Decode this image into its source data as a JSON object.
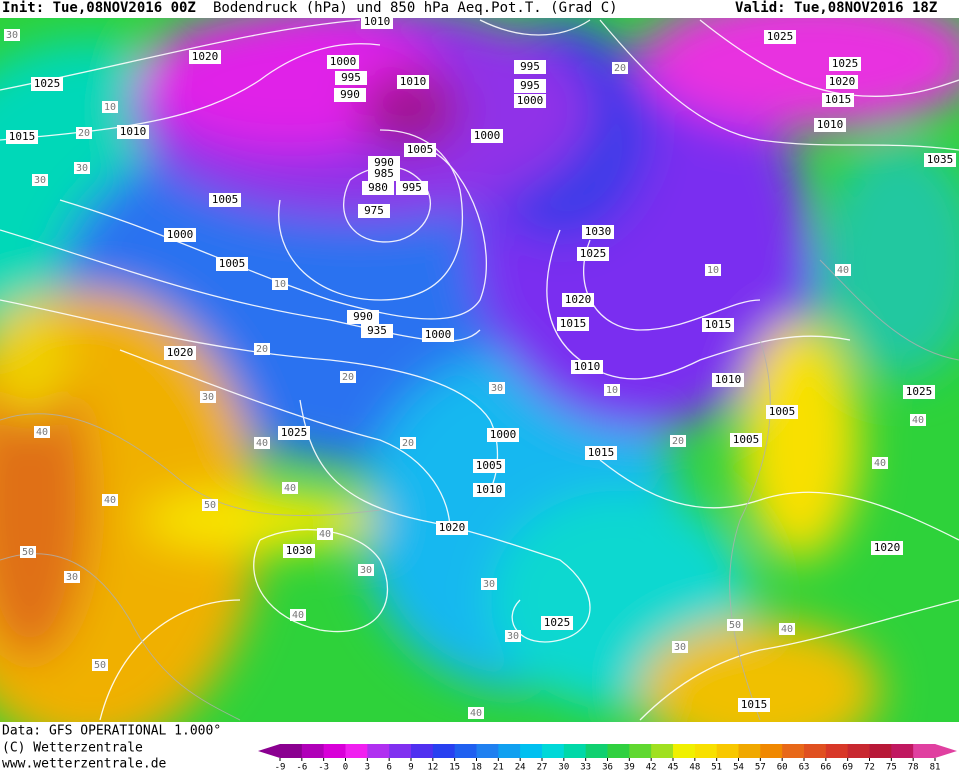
{
  "header": {
    "init": "Init: Tue,08NOV2016 00Z",
    "title": "Bodendruck (hPa) und 850 hPa Aeq.Pot.T. (Grad C)",
    "valid": "Valid: Tue,08NOV2016 18Z"
  },
  "footer": {
    "data": "Data: GFS OPERATIONAL 1.000°",
    "copyright": "(C) Wetterzentrale",
    "url": "www.wetterzentrale.de"
  },
  "colorbar": {
    "ticks": [
      -9,
      -6,
      -3,
      0,
      3,
      6,
      9,
      12,
      15,
      18,
      21,
      24,
      27,
      30,
      33,
      36,
      39,
      42,
      45,
      48,
      51,
      54,
      57,
      60,
      63,
      66,
      69,
      72,
      75,
      78,
      81
    ],
    "colors": [
      "#8a0090",
      "#b000b8",
      "#d800d8",
      "#f020f0",
      "#b030f0",
      "#8030f0",
      "#5030f0",
      "#2840f0",
      "#2060f0",
      "#2080f0",
      "#10a0f0",
      "#00c0f0",
      "#00d8d8",
      "#00d8a8",
      "#10d070",
      "#30d040",
      "#60d830",
      "#a0e020",
      "#f0f000",
      "#f8e000",
      "#f8c800",
      "#f0a800",
      "#f08800",
      "#e86818",
      "#e05020",
      "#d83828",
      "#c82830",
      "#b81838",
      "#c01860",
      "#e040a0"
    ]
  },
  "isobar_labels": [
    "1010",
    "1020",
    "1025",
    "1000",
    "995",
    "990",
    "1010",
    "1015",
    "1010",
    "995",
    "995",
    "1000",
    "1000",
    "1005",
    "990",
    "985",
    "980",
    "995",
    "975",
    "1005",
    "1000",
    "1005",
    "1030",
    "1025",
    "1020",
    "1015",
    "1015",
    "990",
    "935",
    "1000",
    "1020",
    "1010",
    "1010",
    "1005",
    "1005",
    "1025",
    "1000",
    "1005",
    "1010",
    "1015",
    "1020",
    "1030",
    "1025",
    "1015",
    "1020",
    "1025",
    "1025",
    "1025",
    "1020",
    "1015",
    "1010",
    "1035"
  ],
  "theta_labels": [
    "30",
    "10",
    "20",
    "30",
    "30",
    "10",
    "20",
    "20",
    "30",
    "40",
    "40",
    "50",
    "40",
    "40",
    "50",
    "30",
    "40",
    "30",
    "40",
    "50",
    "30",
    "30",
    "40",
    "50",
    "40",
    "40",
    "40",
    "10",
    "20",
    "10",
    "20",
    "30",
    "20",
    "30",
    "40"
  ]
}
